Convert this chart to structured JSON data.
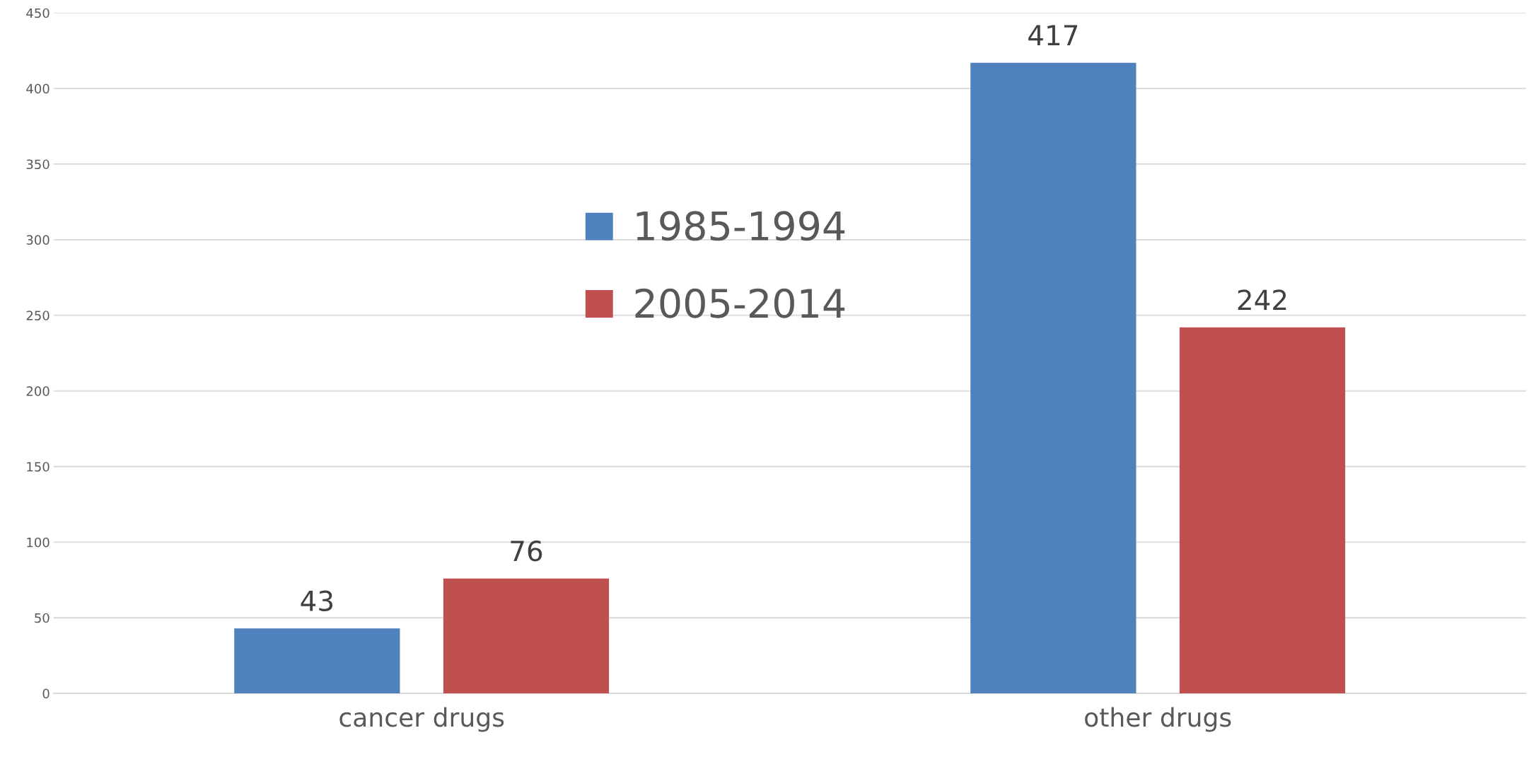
{
  "chart_data": {
    "type": "bar",
    "categories": [
      "cancer drugs",
      "other drugs"
    ],
    "series": [
      {
        "name": "1985-1994",
        "color": "#4f81bd",
        "values": [
          43,
          417
        ]
      },
      {
        "name": "2005-2014",
        "color": "#c0504d",
        "values": [
          76,
          242
        ]
      }
    ],
    "ylim": [
      0,
      450
    ],
    "yticks": [
      0,
      50,
      100,
      150,
      200,
      250,
      300,
      350,
      400,
      450
    ],
    "grid": "y",
    "legend": "center",
    "data_labels": true
  }
}
